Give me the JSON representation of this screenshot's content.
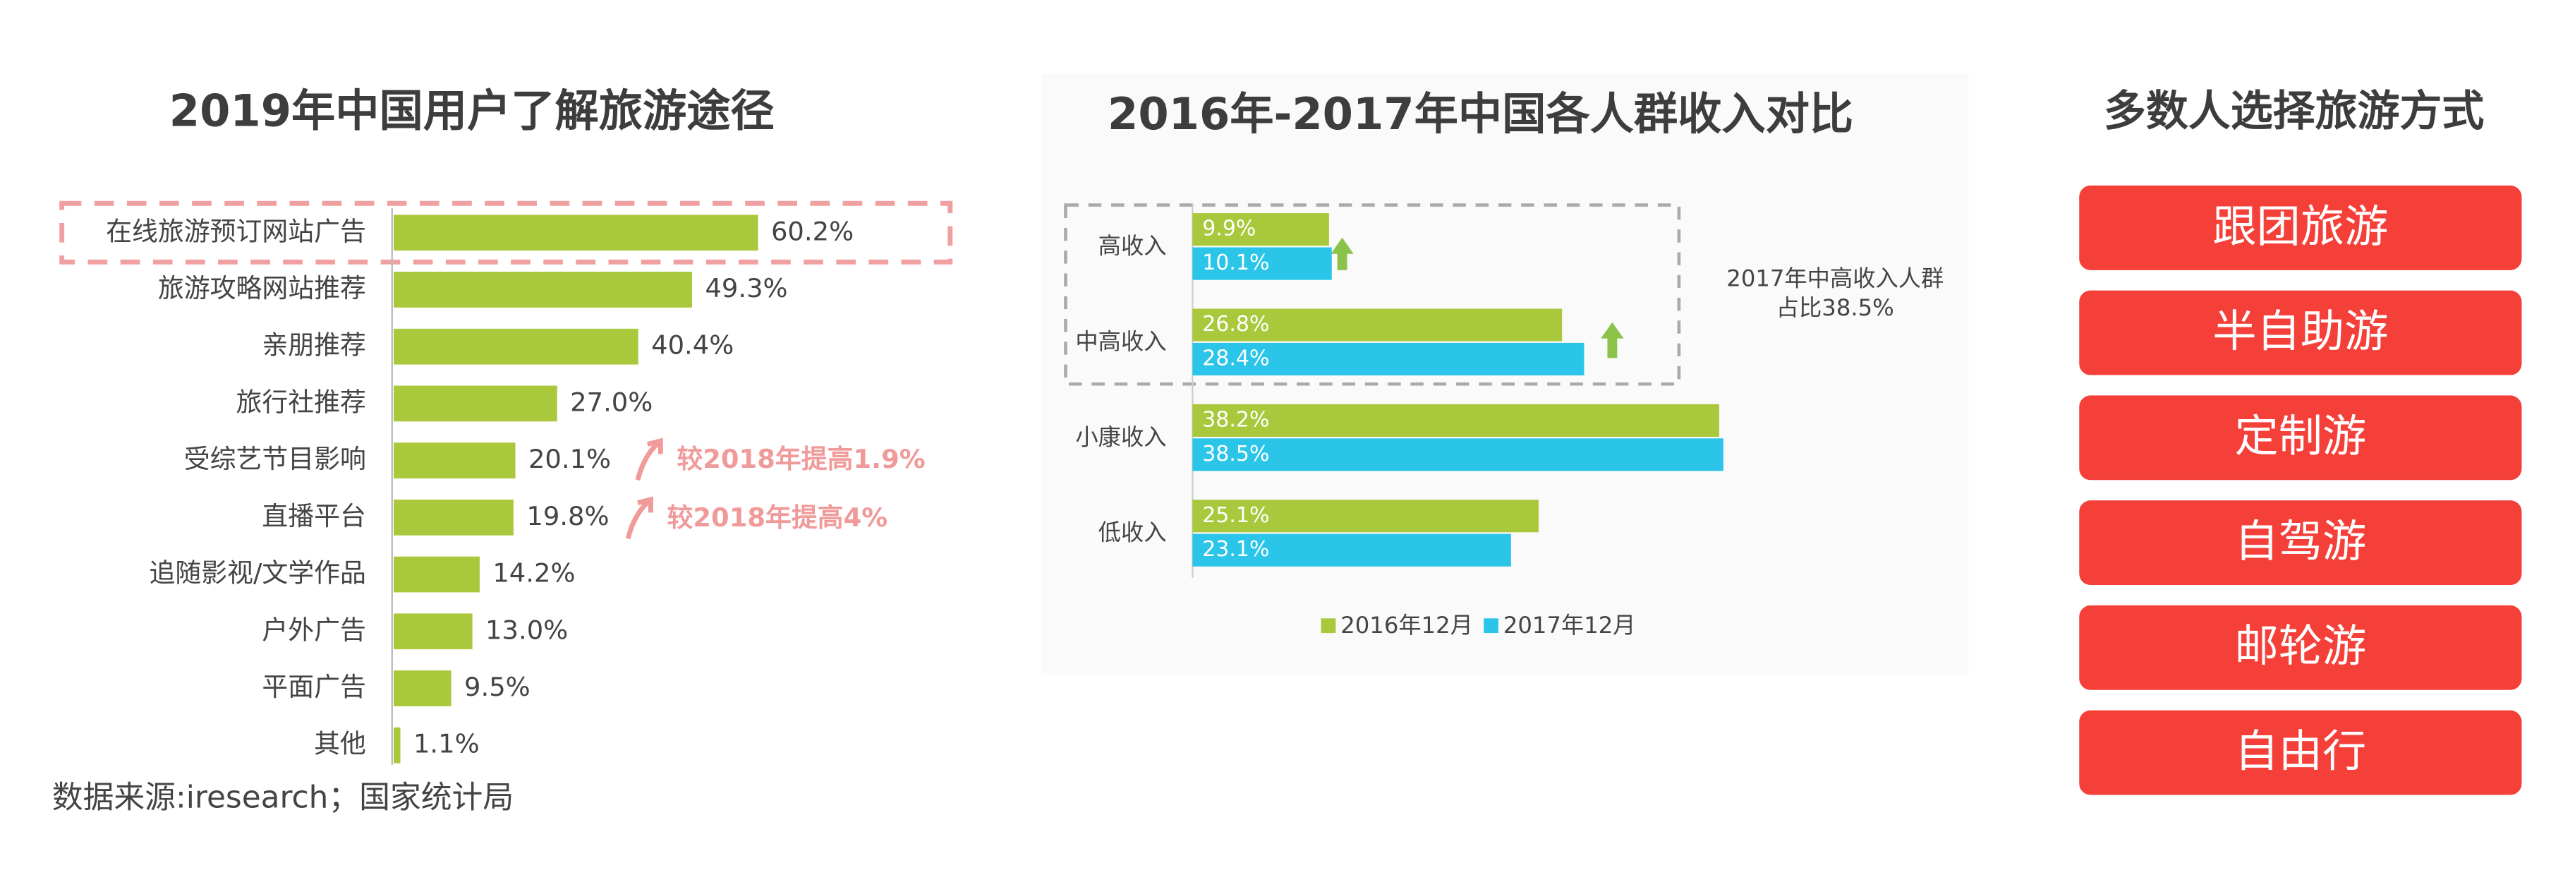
{
  "chart_data": [
    {
      "type": "bar",
      "orientation": "horizontal",
      "title": "2019年中国用户了解旅游途径",
      "categories": [
        "在线旅游预订网站广告",
        "旅游攻略网站推荐",
        "亲朋推荐",
        "旅行社推荐",
        "受综艺节目影响",
        "直播平台",
        "追随影视/文学作品",
        "户外广告",
        "平面广告",
        "其他"
      ],
      "values": [
        60.2,
        49.3,
        40.4,
        27.0,
        20.1,
        19.8,
        14.2,
        13.0,
        9.5,
        1.1
      ],
      "value_labels": [
        "60.2%",
        "49.3%",
        "40.4%",
        "27.0%",
        "20.1%",
        "19.8%",
        "14.2%",
        "13.0%",
        "9.5%",
        "1.1%"
      ],
      "color": "#a9c83b",
      "xlim": [
        0,
        100
      ],
      "annotations": [
        "较2018年提高1.9%",
        "较2018年提高4%"
      ]
    },
    {
      "type": "grouped_bar",
      "orientation": "horizontal",
      "title": "2016年-2017年中国各人群收入对比",
      "categories": [
        "高收入",
        "中高收入",
        "小康收入",
        "低收入"
      ],
      "series": [
        {
          "name": "2016年12月",
          "color": "#a9c83b",
          "values": [
            9.9,
            26.8,
            38.2,
            25.1
          ],
          "value_labels": [
            "9.9%",
            "26.8%",
            "38.2%",
            "25.1%"
          ]
        },
        {
          "name": "2017年12月",
          "color": "#2ac5e8",
          "values": [
            10.1,
            28.4,
            38.5,
            23.1
          ],
          "value_labels": [
            "10.1%",
            "28.4%",
            "38.5%",
            "23.1%"
          ]
        }
      ],
      "xlim": [
        0,
        40
      ],
      "annotation": [
        "2017年中高收入人群",
        "占比38.5%"
      ]
    }
  ],
  "panel": {
    "title": "多数人选择旅游方式",
    "items": [
      "跟团旅游",
      "半自助游",
      "定制游",
      "自驾游",
      "邮轮游",
      "自由行"
    ]
  },
  "source": "数据来源:iresearch；国家统计局"
}
